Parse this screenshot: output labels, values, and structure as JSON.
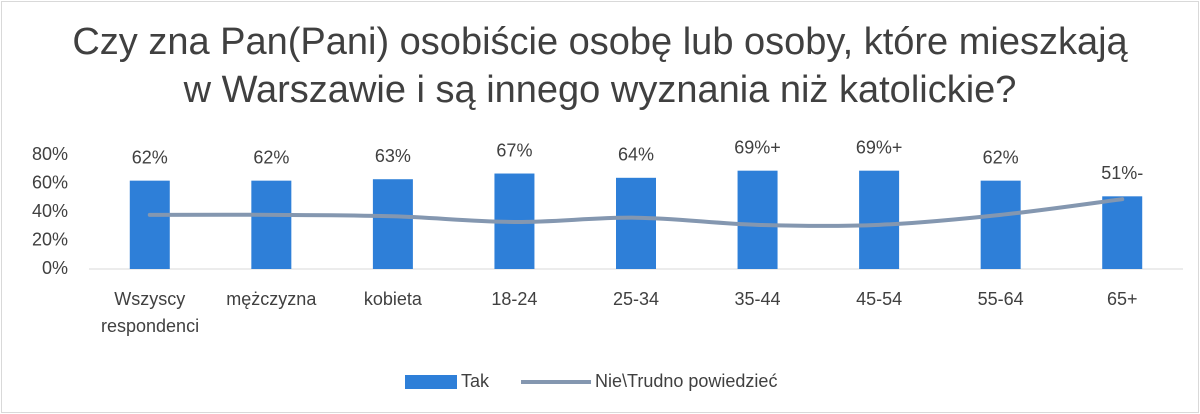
{
  "chart_data": {
    "type": "bar",
    "title": "Czy zna Pan(Pani) osobiście osobę lub osoby, które mieszkają w Warszawie i są innego wyznania niż katolickie?",
    "categories": [
      "Wszyscy respondenci",
      "mężczyzna",
      "kobieta",
      "18-24",
      "25-34",
      "35-44",
      "45-54",
      "55-64",
      "65+"
    ],
    "series": [
      {
        "name": "Tak",
        "type": "bar",
        "color": "#2e7fd8",
        "values": [
          62,
          62,
          63,
          67,
          64,
          69,
          69,
          62,
          51
        ],
        "value_labels": [
          "62%",
          "62%",
          "63%",
          "67%",
          "64%",
          "69%+",
          "69%+",
          "62%",
          "51%-"
        ]
      },
      {
        "name": "Nie\\Trudno powiedzieć",
        "type": "line",
        "color": "#8497b0",
        "values": [
          38,
          38,
          37,
          33,
          36,
          31,
          31,
          38,
          49
        ]
      }
    ],
    "ylim": [
      0,
      80
    ],
    "yticks": [
      {
        "value": 0,
        "label": "0%"
      },
      {
        "value": 20,
        "label": "20%"
      },
      {
        "value": 40,
        "label": "40%"
      },
      {
        "value": 60,
        "label": "60%"
      },
      {
        "value": 80,
        "label": "80%"
      }
    ],
    "grid": false,
    "legend": "bottom"
  }
}
